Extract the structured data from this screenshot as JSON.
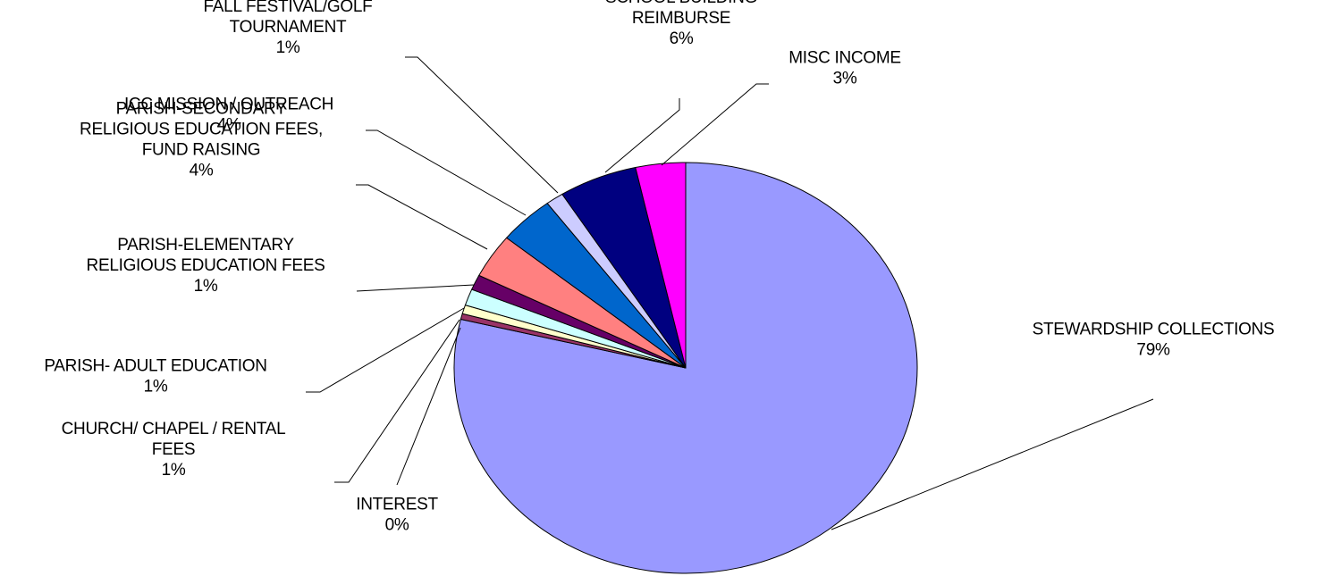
{
  "chart_data": {
    "type": "pie",
    "title": "",
    "start_angle_deg": 0,
    "direction": "clockwise",
    "slices": [
      {
        "name": "STEWARDSHIP COLLECTIONS",
        "value": 79.2,
        "pct_label": "79%",
        "color": "#9999ff"
      },
      {
        "name": "INTEREST",
        "value": 0.45,
        "pct_label": "0%",
        "color": "#993366"
      },
      {
        "name": "CHURCH/ CHAPEL / RENTAL FEES",
        "value": 0.7,
        "pct_label": "1%",
        "color": "#ffffcc"
      },
      {
        "name": "PARISH- ADULT EDUCATION",
        "value": 1.3,
        "pct_label": "1%",
        "color": "#ccffff"
      },
      {
        "name": "PARISH-ELEMENTARY RELIGIOUS EDUCATION FEES",
        "value": 1.2,
        "pct_label": "1%",
        "color": "#660066"
      },
      {
        "name": "PARISH-SECONDARY RELIGIOUS EDUCATION FEES, FUND RAISING",
        "value": 3.5,
        "pct_label": "4%",
        "color": "#ff8080"
      },
      {
        "name": "ICC MISSION / OUTREACH",
        "value": 3.9,
        "pct_label": "4%",
        "color": "#0066cc"
      },
      {
        "name": "FALL FESTIVAL/GOLF TOURNAMENT",
        "value": 1.25,
        "pct_label": "1%",
        "color": "#ccccff"
      },
      {
        "name": "SCHOOL BUILDING REIMBURSE",
        "value": 5.5,
        "pct_label": "6%",
        "color": "#000080"
      },
      {
        "name": "MISC INCOME",
        "value": 3.5,
        "pct_label": "3%",
        "color": "#ff00ff"
      }
    ]
  }
}
